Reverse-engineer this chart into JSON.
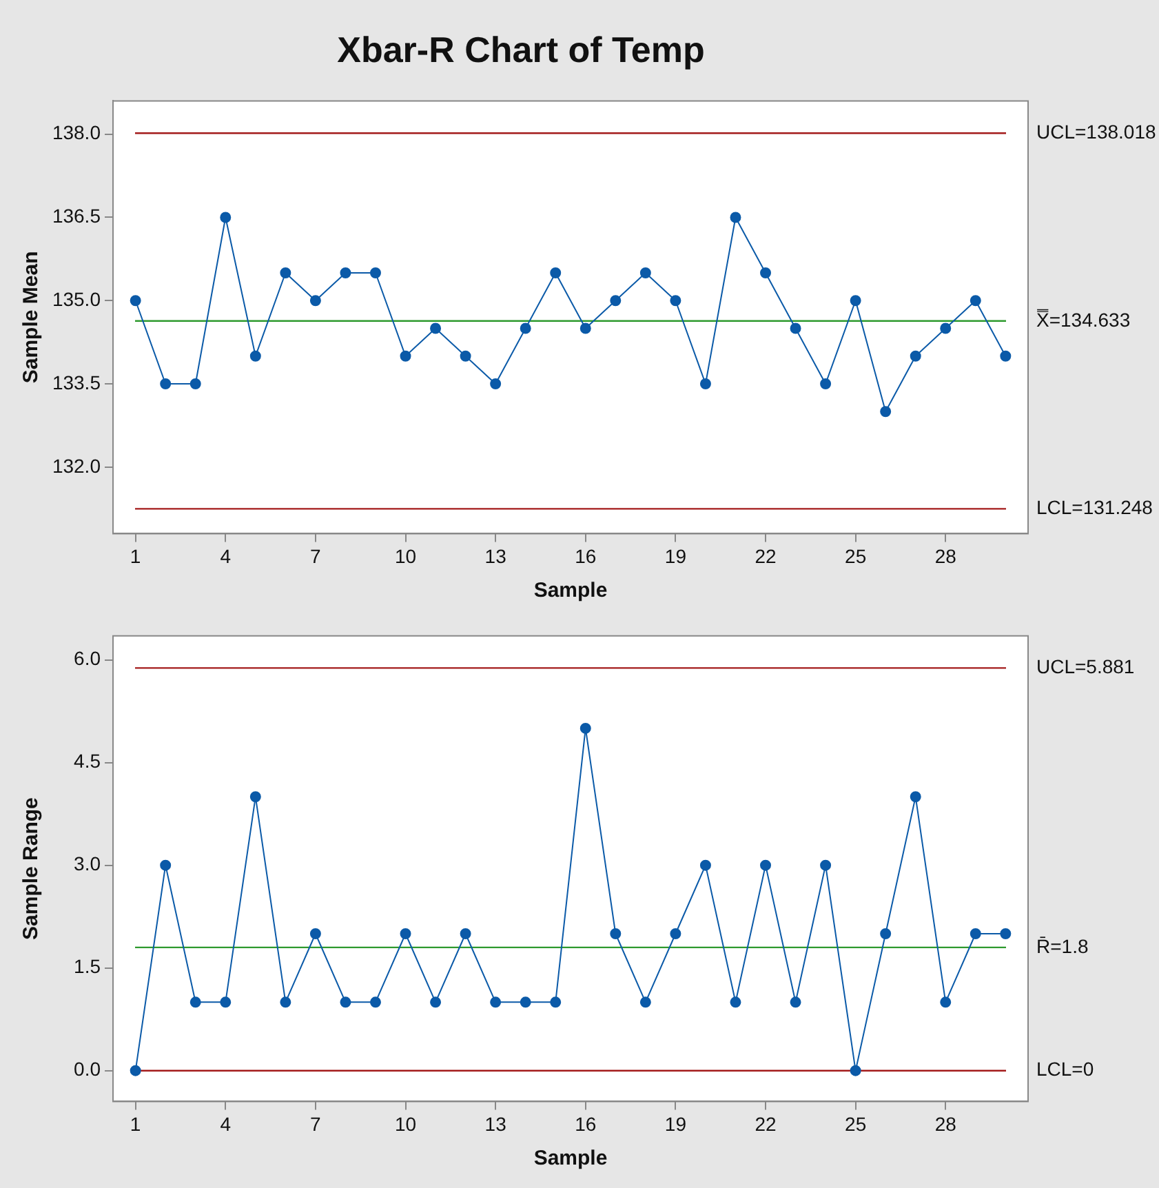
{
  "chart_data": [
    {
      "type": "line",
      "title": "Xbar-R Chart of Temp",
      "xlabel": "Sample",
      "ylabel": "Sample Mean",
      "x": [
        1,
        2,
        3,
        4,
        5,
        6,
        7,
        8,
        9,
        10,
        11,
        12,
        13,
        14,
        15,
        16,
        17,
        18,
        19,
        20,
        21,
        22,
        23,
        24,
        25,
        26,
        27,
        28,
        29,
        30
      ],
      "series": [
        {
          "color": "#0b5aa8",
          "values": [
            135.0,
            133.5,
            133.5,
            136.5,
            134.0,
            135.5,
            135.0,
            135.5,
            135.5,
            134.0,
            134.5,
            134.0,
            133.5,
            134.5,
            135.5,
            134.5,
            135.0,
            135.5,
            135.0,
            133.5,
            136.5,
            135.5,
            134.5,
            133.5,
            135.0,
            133.0,
            134.0,
            134.5,
            135.0,
            134.0
          ]
        }
      ],
      "xlim": [
        0.25,
        30.75
      ],
      "xticks": [
        1,
        4,
        7,
        10,
        13,
        16,
        19,
        22,
        25,
        28
      ],
      "ylim": [
        130.8,
        138.6
      ],
      "yticks": [
        {
          "value": 132,
          "label": "132.0"
        },
        {
          "value": 133.5,
          "label": "133.5"
        },
        {
          "value": 135,
          "label": "135.0"
        },
        {
          "value": 136.5,
          "label": "136.5"
        },
        {
          "value": 138,
          "label": "138.0"
        }
      ],
      "ref_lines": [
        {
          "axis": "y",
          "value": 138.018,
          "label": "UCL=138.018",
          "color": "#a31a1a"
        },
        {
          "axis": "y",
          "value": 134.633,
          "label": "X̿=134.633",
          "color": "#2e9a2e"
        },
        {
          "axis": "y",
          "value": 131.248,
          "label": "LCL=131.248",
          "color": "#a31a1a"
        }
      ],
      "grid": false,
      "legend": false,
      "marker": "circle",
      "line_style": "solid"
    },
    {
      "type": "line",
      "xlabel": "Sample",
      "ylabel": "Sample Range",
      "x": [
        1,
        2,
        3,
        4,
        5,
        6,
        7,
        8,
        9,
        10,
        11,
        12,
        13,
        14,
        15,
        16,
        17,
        18,
        19,
        20,
        21,
        22,
        23,
        24,
        25,
        26,
        27,
        28,
        29,
        30
      ],
      "series": [
        {
          "color": "#0b5aa8",
          "values": [
            0,
            3,
            1,
            1,
            4,
            1,
            2,
            1,
            1,
            2,
            1,
            2,
            1,
            1,
            1,
            5,
            2,
            1,
            2,
            3,
            1,
            3,
            1,
            3,
            0,
            2,
            4,
            1,
            2,
            2
          ]
        }
      ],
      "xlim": [
        0.25,
        30.75
      ],
      "xticks": [
        1,
        4,
        7,
        10,
        13,
        16,
        19,
        22,
        25,
        28
      ],
      "ylim": [
        -0.45,
        6.35
      ],
      "yticks": [
        {
          "value": 0,
          "label": "0.0"
        },
        {
          "value": 1.5,
          "label": "1.5"
        },
        {
          "value": 3,
          "label": "3.0"
        },
        {
          "value": 4.5,
          "label": "4.5"
        },
        {
          "value": 6,
          "label": "6.0"
        }
      ],
      "ref_lines": [
        {
          "axis": "y",
          "value": 5.881,
          "label": "UCL=5.881",
          "color": "#a31a1a"
        },
        {
          "axis": "y",
          "value": 1.8,
          "label": "R̄=1.8",
          "color": "#2e9a2e"
        },
        {
          "axis": "y",
          "value": 0,
          "label": "LCL=0",
          "color": "#a31a1a"
        }
      ],
      "grid": false,
      "legend": false,
      "marker": "circle",
      "line_style": "solid"
    }
  ]
}
